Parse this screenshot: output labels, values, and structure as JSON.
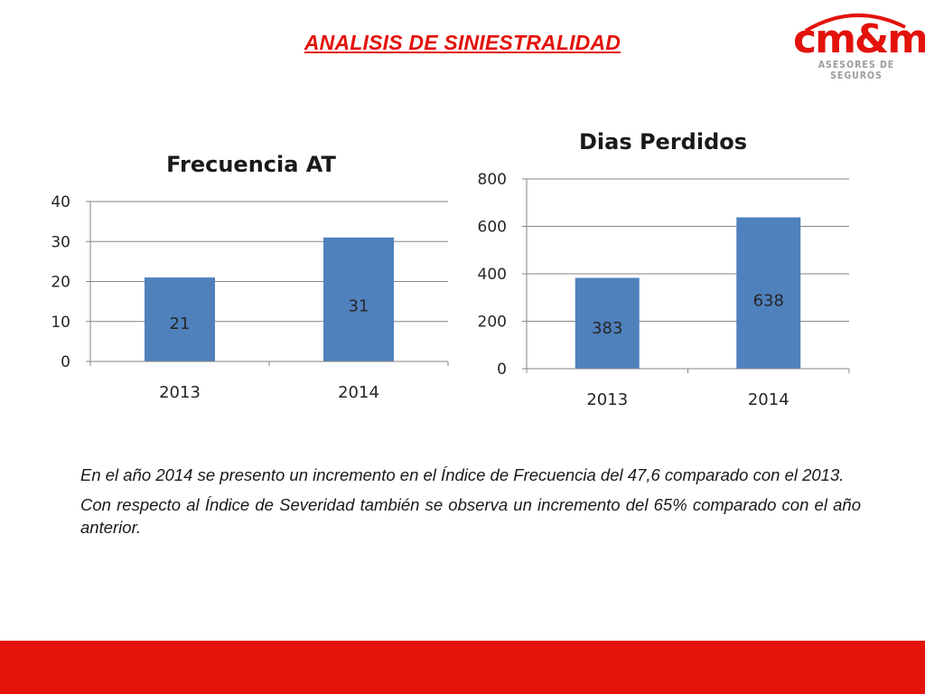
{
  "slide": {
    "title": "ANALISIS DE SINIESTRALIDAD",
    "logo_main": "cm&m",
    "logo_sub": "ASESORES DE SEGUROS",
    "paragraphs": [
      "En el año 2014 se presento un incremento en el Índice de Frecuencia del 47,6 comparado con el 2013.",
      "Con respecto al Índice de Severidad también se observa un incremento del 65% comparado con el año anterior."
    ]
  },
  "colors": {
    "accent": "#e3120b",
    "bar": "#4f81bd",
    "grid": "#868686",
    "logo_gray": "#9c9c9c"
  },
  "chart_data": [
    {
      "type": "bar",
      "title": "Frecuencia AT",
      "categories": [
        "2013",
        "2014"
      ],
      "values": [
        21,
        31
      ],
      "data_labels": [
        "21",
        "31"
      ],
      "ylim": [
        0,
        40
      ],
      "yticks": [
        0,
        10,
        20,
        30,
        40
      ],
      "grid": true,
      "legend": "none"
    },
    {
      "type": "bar",
      "title": "Dias Perdidos",
      "categories": [
        "2013",
        "2014"
      ],
      "values": [
        383,
        638
      ],
      "data_labels": [
        "383",
        "638"
      ],
      "ylim": [
        0,
        800
      ],
      "yticks": [
        0,
        200,
        400,
        600,
        800
      ],
      "grid": true,
      "legend": "none"
    }
  ]
}
